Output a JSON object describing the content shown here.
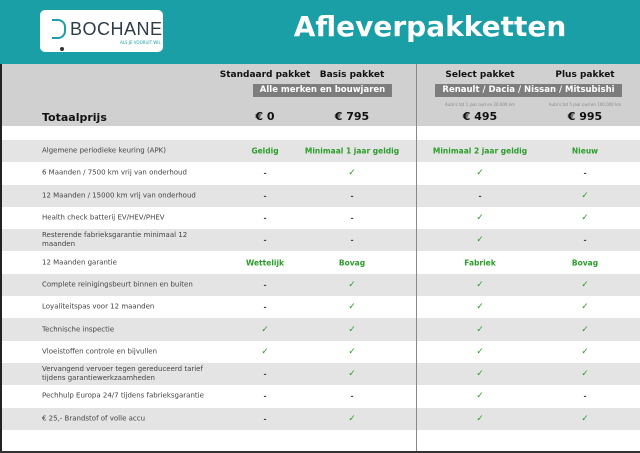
{
  "header": {
    "logo_text": "BOCHANE",
    "logo_tagline": "ALS JE VOORUIT WIL",
    "title": "Afleverpakketten",
    "color": "#1a9fa6"
  },
  "packages": [
    {
      "name": "Standaard pakket",
      "price": "€ 0"
    },
    {
      "name": "Basis pakket",
      "price": "€ 795"
    },
    {
      "name": "Select pakket",
      "price": "€ 495",
      "note": "Auto's tot 1 jaar oud en 20.000 km"
    },
    {
      "name": "Plus pakket",
      "price": "€ 995",
      "note": "Auto's tot 5 jaar oud en 100.000 km"
    }
  ],
  "group_left": "Alle merken en bouwjaren",
  "group_right": "Renault / Dacia / Nissan / Mitsubishi",
  "total_label": "Totaalprijs",
  "rows": [
    {
      "label": "Algemene periodieke keuring (APK)",
      "values": [
        "Geldig",
        "Minimaal 1 jaar geldig",
        "Minimaal 2 jaar geldig",
        "Nieuw"
      ]
    },
    {
      "label": "6 Maanden / 7500 km vrij van onderhoud",
      "values": [
        "-",
        "✓",
        "✓",
        "-"
      ]
    },
    {
      "label": "12 Maanden / 15000 km vrij van onderhoud",
      "values": [
        "-",
        "-",
        "-",
        "✓"
      ]
    },
    {
      "label": "Health check batterij EV/HEV/PHEV",
      "values": [
        "-",
        "-",
        "✓",
        "✓"
      ]
    },
    {
      "label": "Resterende fabrieksgarantie minimaal 12 maanden",
      "values": [
        "-",
        "-",
        "✓",
        "-"
      ]
    },
    {
      "label": "12 Maanden  garantie",
      "values": [
        "Wettelijk",
        "Bovag",
        "Fabriek",
        "Bovag"
      ]
    },
    {
      "label": "Complete reinigingsbeurt binnen en buiten",
      "values": [
        "-",
        "✓",
        "✓",
        "✓"
      ]
    },
    {
      "label": "Loyaliteitspas voor 12 maanden",
      "values": [
        "-",
        "✓",
        "✓",
        "✓"
      ]
    },
    {
      "label": "Technische inspectie",
      "values": [
        "✓",
        "✓",
        "✓",
        "✓"
      ]
    },
    {
      "label": "Vloeistoffen controle en bijvullen",
      "values": [
        "✓",
        "✓",
        "✓",
        "✓"
      ]
    },
    {
      "label": "Vervangend vervoer tegen gereduceerd tarief tijdens garantiewerkzaamheden",
      "values": [
        "-",
        "✓",
        "✓",
        "✓"
      ]
    },
    {
      "label": "Pechhulp Europa 24/7 tijdens fabrieksgarantie",
      "values": [
        "-",
        "-",
        "✓",
        "-"
      ]
    },
    {
      "label": "€ 25,- Brandstof of  volle accu",
      "values": [
        "-",
        "✓",
        "✓",
        "✓"
      ]
    }
  ]
}
